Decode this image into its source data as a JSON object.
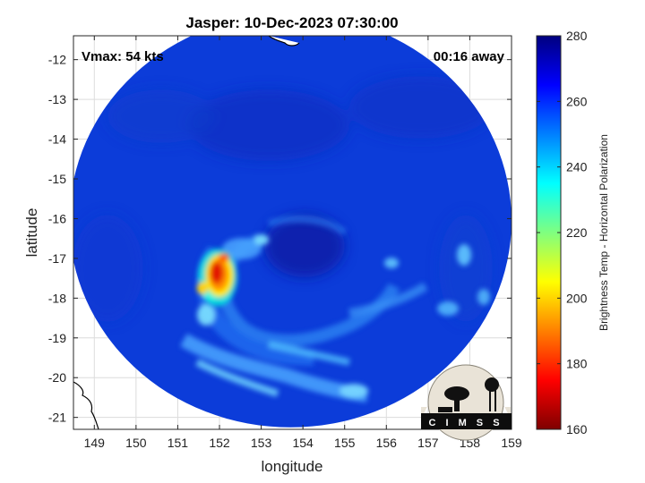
{
  "figure": {
    "title": "Jasper: 10-Dec-2023 07:30:00",
    "annotation_left": "Vmax: 54 kts",
    "annotation_right": "00:16 away",
    "logo_text": "C I M S S"
  },
  "chart_data": {
    "type": "heatmap",
    "title": "Jasper: 10-Dec-2023 07:30:00",
    "xlabel": "longitude",
    "ylabel": "latitude",
    "xlim": [
      148.5,
      159.0
    ],
    "ylim": [
      -21.3,
      -11.4
    ],
    "x_ticks": [
      149,
      150,
      151,
      152,
      153,
      154,
      155,
      156,
      157,
      158,
      159
    ],
    "x_tick_labels": [
      "149",
      "150",
      "151",
      "152",
      "153",
      "154",
      "155",
      "156",
      "157",
      "158",
      "159"
    ],
    "y_ticks": [
      -12,
      -13,
      -14,
      -15,
      -16,
      -17,
      -18,
      -19,
      -20,
      -21
    ],
    "y_tick_labels": [
      "-12",
      "-13",
      "-14",
      "-15",
      "-16",
      "-17",
      "-18",
      "-19",
      "-20",
      "-21"
    ],
    "grid": true,
    "colorbar": {
      "label": "Brightness Temp - Horizontal Polarization",
      "range": [
        160,
        280
      ],
      "ticks": [
        160,
        180,
        200,
        220,
        240,
        260,
        280
      ],
      "tick_labels": [
        "160",
        "180",
        "200",
        "220",
        "240",
        "260",
        "280"
      ],
      "colormap": "jet"
    },
    "swath": {
      "center": [
        153.7,
        -16.05
      ],
      "lon_radius": 5.3,
      "lat_radius": 5.2
    },
    "storm_center": [
      154.3,
      -16.7
    ],
    "colors": {
      "background": "#0c3cd9",
      "deep_convection": "#d10000"
    }
  }
}
